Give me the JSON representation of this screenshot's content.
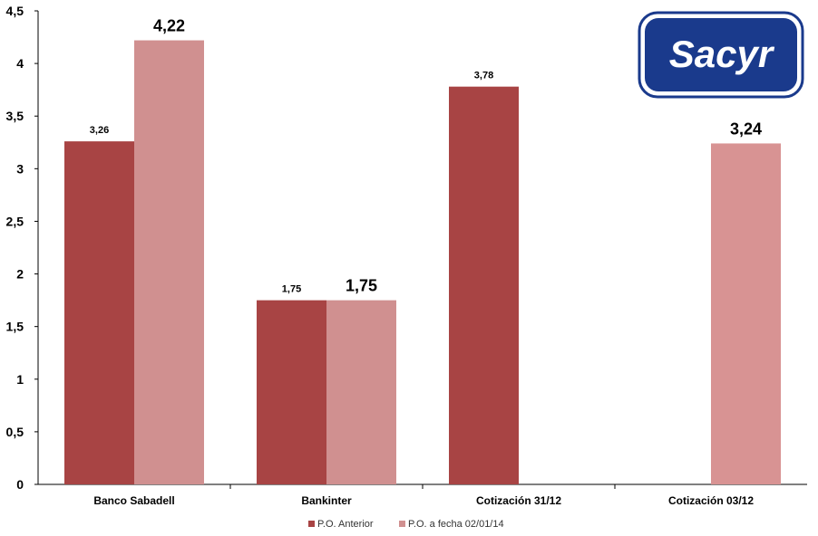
{
  "chart_data": {
    "type": "bar",
    "categories": [
      "Banco Sabadell",
      "Bankinter",
      "Cotización 31/12",
      "Cotización 03/12"
    ],
    "series": [
      {
        "name": "P.O. Anterior",
        "color": "#A84444",
        "values": [
          3.26,
          1.75,
          3.78,
          null
        ],
        "labels": [
          "3,26",
          "1,75",
          "3,78",
          ""
        ]
      },
      {
        "name": "P.O. a fecha 02/01/14",
        "color": "#D09090",
        "values": [
          4.22,
          1.75,
          null,
          3.24
        ],
        "labels": [
          "4,22",
          "1,75",
          "",
          "3,24"
        ]
      }
    ],
    "ylim": [
      0,
      4.5
    ],
    "yticks": [
      "0",
      "0,5",
      "1",
      "1,5",
      "2",
      "2,5",
      "3",
      "3,5",
      "4",
      "4,5"
    ],
    "legend_position": "bottom",
    "grid": false
  },
  "logo": {
    "text": "Sacyr",
    "background": "#1A3A8C",
    "border": "#1A3A8C"
  },
  "extra_bar_color": "#D89393"
}
